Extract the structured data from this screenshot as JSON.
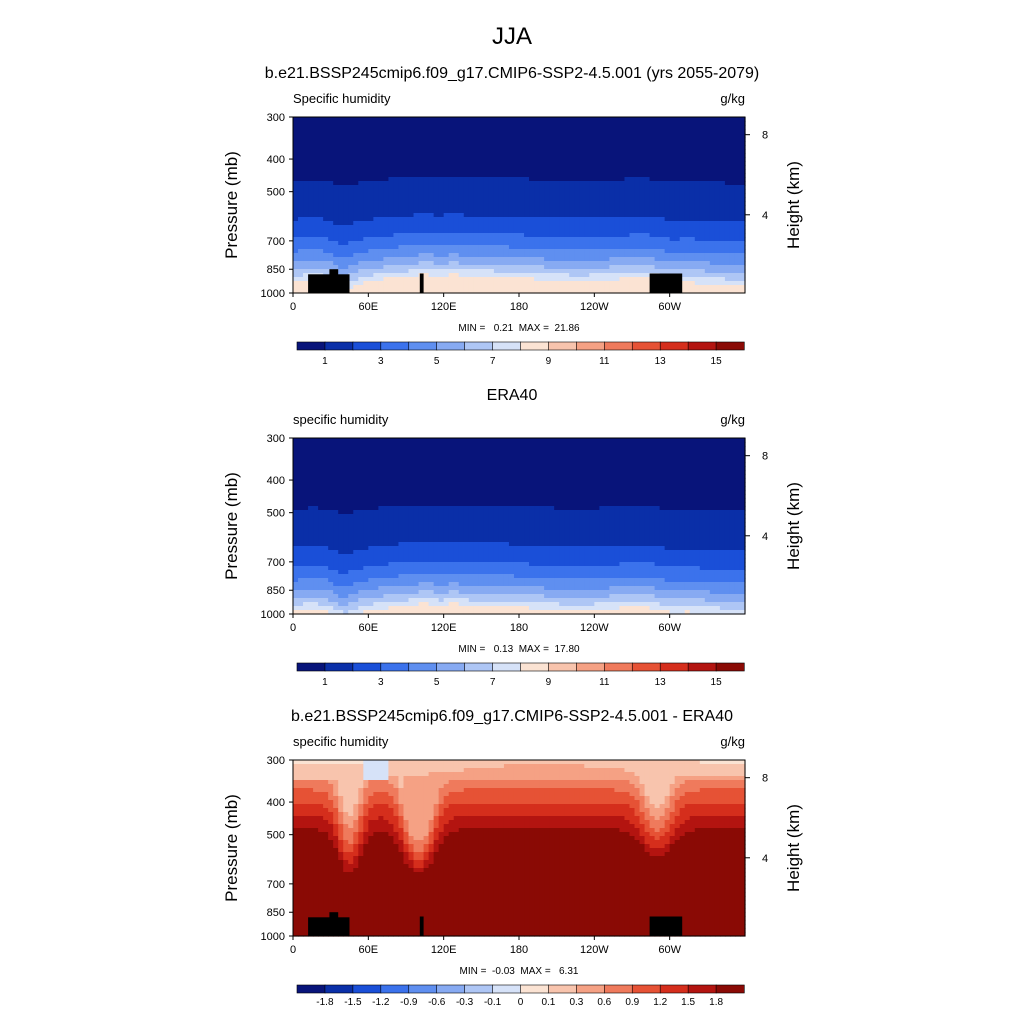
{
  "figure": {
    "title": "JJA"
  },
  "colorbars": {
    "absolute": {
      "colors": [
        "#08147a",
        "#0a2fa8",
        "#1a4fd8",
        "#3b72ec",
        "#5f8ff0",
        "#87aaf2",
        "#aec6f5",
        "#d6e2f8",
        "#fbe3d3",
        "#f8c4ad",
        "#f5a184",
        "#ef7a5c",
        "#e65235",
        "#d52e1c",
        "#b31410",
        "#8a0a05"
      ],
      "labels": [
        "1",
        "3",
        "5",
        "7",
        "9",
        "11",
        "13",
        "15"
      ]
    },
    "difference": {
      "colors": [
        "#08147a",
        "#0a2fa8",
        "#1a4fd8",
        "#3b72ec",
        "#5f8ff0",
        "#87aaf2",
        "#aec6f5",
        "#d6e2f8",
        "#fbe3d3",
        "#f8c4ad",
        "#f5a184",
        "#ef7a5c",
        "#e65235",
        "#d52e1c",
        "#b31410",
        "#8a0a05"
      ],
      "labels": [
        "-1.8",
        "-1.5",
        "-1.2",
        "-0.9",
        "-0.6",
        "-0.3",
        "-0.1",
        "0",
        "0.1",
        "0.3",
        "0.6",
        "0.9",
        "1.2",
        "1.5",
        "1.8"
      ]
    }
  },
  "chart_data": [
    {
      "type": "heatmap",
      "title": "b.e21.BSSP245cmip6.f09_g17.CMIP6-SSP2-4.5.001 (yrs 2055-2079)",
      "left_label": "Specific humidity",
      "units": "g/kg",
      "ylabel": "Pressure (mb)",
      "ylabel_right": "Height (km)",
      "x_ticks": [
        "0",
        "60E",
        "120E",
        "180",
        "120W",
        "60W"
      ],
      "y_ticks": [
        "300",
        "400",
        "500",
        "700",
        "850",
        "1000"
      ],
      "right_ticks": [
        "8",
        "4"
      ],
      "stats_text": "MIN =   0.21  MAX =  21.86",
      "min": 0.21,
      "max": 21.86,
      "levels": [
        1,
        3,
        5,
        7,
        9,
        11,
        13,
        15
      ],
      "colorbar": "absolute",
      "topography": true,
      "field": "model"
    },
    {
      "type": "heatmap",
      "title": "ERA40",
      "left_label": "specific humidity",
      "units": "g/kg",
      "ylabel": "Pressure (mb)",
      "ylabel_right": "Height (km)",
      "x_ticks": [
        "0",
        "60E",
        "120E",
        "180",
        "120W",
        "60W"
      ],
      "y_ticks": [
        "300",
        "400",
        "500",
        "700",
        "850",
        "1000"
      ],
      "right_ticks": [
        "8",
        "4"
      ],
      "stats_text": "MIN =   0.13  MAX =  17.80",
      "min": 0.13,
      "max": 17.8,
      "levels": [
        1,
        3,
        5,
        7,
        9,
        11,
        13,
        15
      ],
      "colorbar": "absolute",
      "topography": false,
      "field": "obs"
    },
    {
      "type": "heatmap",
      "title": "b.e21.BSSP245cmip6.f09_g17.CMIP6-SSP2-4.5.001 - ERA40",
      "left_label": "specific humidity",
      "units": "g/kg",
      "ylabel": "Pressure (mb)",
      "ylabel_right": "Height (km)",
      "x_ticks": [
        "0",
        "60E",
        "120E",
        "180",
        "120W",
        "60W"
      ],
      "y_ticks": [
        "300",
        "400",
        "500",
        "700",
        "850",
        "1000"
      ],
      "right_ticks": [
        "8",
        "4"
      ],
      "stats_text": "MIN =  -0.03  MAX =   6.31",
      "min": -0.03,
      "max": 6.31,
      "levels": [
        -1.8,
        -1.5,
        -1.2,
        -0.9,
        -0.6,
        -0.3,
        -0.1,
        0,
        0.1,
        0.3,
        0.6,
        0.9,
        1.2,
        1.5,
        1.8
      ],
      "colorbar": "difference",
      "topography": true,
      "field": "diff"
    }
  ]
}
